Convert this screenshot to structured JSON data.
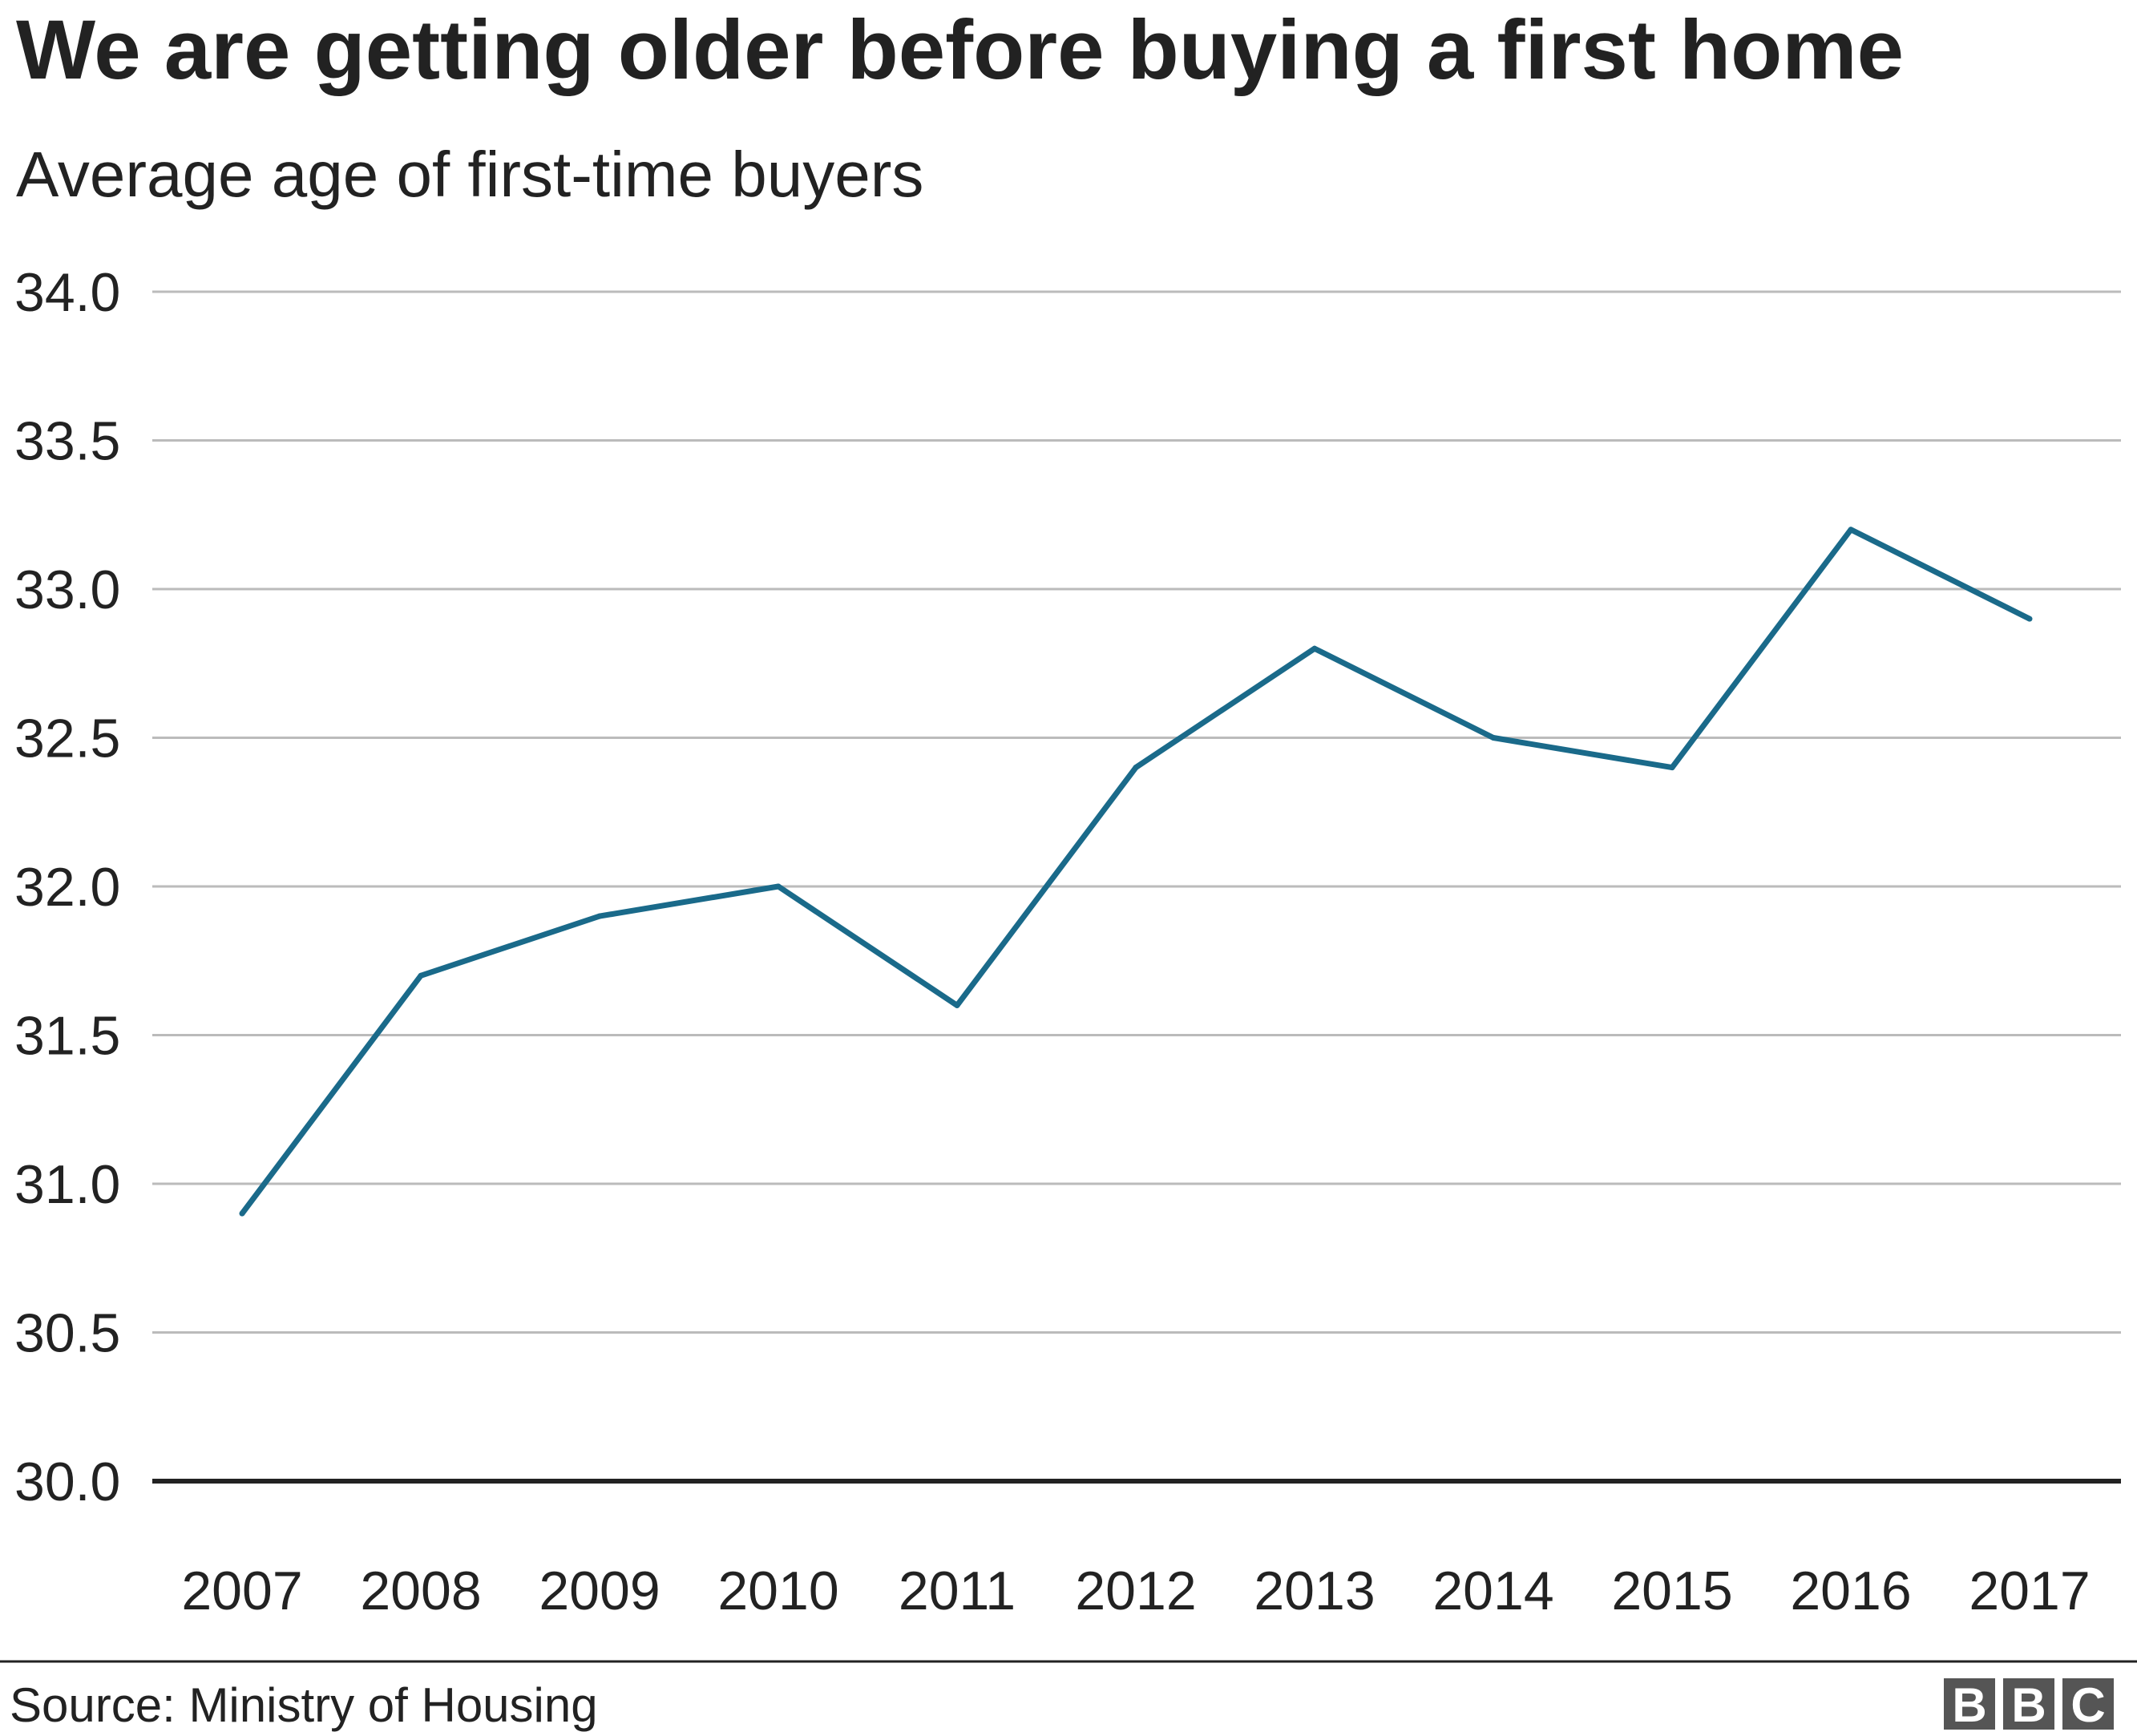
{
  "chart_data": {
    "type": "line",
    "title": "We are getting older before buying a first home",
    "subtitle": "Average age of first-time buyers",
    "xlabel": "",
    "ylabel": "",
    "categories": [
      "2007",
      "2008",
      "2009",
      "2010",
      "2011",
      "2012",
      "2013",
      "2014",
      "2015",
      "2016",
      "2017"
    ],
    "series": [
      {
        "name": "Average age of first-time buyers",
        "values": [
          30.9,
          31.7,
          31.9,
          32.0,
          31.6,
          32.4,
          32.8,
          32.5,
          32.4,
          33.2,
          32.9
        ]
      }
    ],
    "ylim": [
      30.0,
      34.0
    ],
    "yticks": [
      "30.0",
      "30.5",
      "31.0",
      "31.5",
      "32.0",
      "32.5",
      "33.0",
      "33.5",
      "34.0"
    ],
    "grid": true,
    "legend": "none"
  },
  "colors": {
    "line": "#1a6a8a",
    "grid": "#bbbbbb",
    "baseline": "#222222",
    "text": "#222222",
    "logo_bg": "#555555"
  },
  "footer": {
    "source": "Source: Ministry of Housing",
    "logo_letters": [
      "B",
      "B",
      "C"
    ]
  }
}
